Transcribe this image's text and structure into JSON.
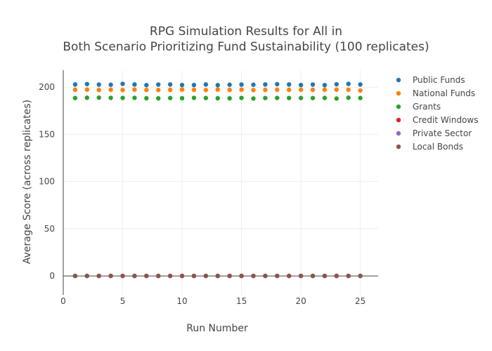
{
  "chart_data": {
    "type": "scatter",
    "title_lines": [
      "RPG Simulation Results for All in",
      "Both Scenario Prioritizing Fund Sustainability (100 replicates)"
    ],
    "xlabel": "Run Number",
    "ylabel": "Average Score (across replicates)",
    "xlim": [
      0,
      26.5
    ],
    "ylim": [
      -20,
      218
    ],
    "xticks": [
      0,
      5,
      10,
      15,
      20,
      25
    ],
    "yticks": [
      0,
      50,
      100,
      150,
      200
    ],
    "grid": true,
    "legend_position": "right",
    "x": [
      1,
      2,
      3,
      4,
      5,
      6,
      7,
      8,
      9,
      10,
      11,
      12,
      13,
      14,
      15,
      16,
      17,
      18,
      19,
      20,
      21,
      22,
      23,
      24,
      25
    ],
    "series": [
      {
        "name": "Public Funds",
        "color": "#1f77b4",
        "values": [
          202.9,
          203.3,
          202.8,
          202.6,
          203.5,
          202.9,
          202.2,
          202.8,
          202.9,
          202.3,
          202.3,
          202.9,
          202.2,
          202.6,
          202.8,
          202.6,
          202.9,
          203.2,
          202.9,
          202.3,
          202.8,
          202.2,
          203.1,
          203.5,
          202.9
        ]
      },
      {
        "name": "National Funds",
        "color": "#ff7f0e",
        "values": [
          197.3,
          197.4,
          197.0,
          197.3,
          197.0,
          197.4,
          197.1,
          197.0,
          197.2,
          197.5,
          197.2,
          197.0,
          197.5,
          197.1,
          197.4,
          196.9,
          197.2,
          197.3,
          197.2,
          197.3,
          197.2,
          197.3,
          197.4,
          197.3,
          196.5
        ]
      },
      {
        "name": "Grants",
        "color": "#2ca02c",
        "values": [
          188.5,
          188.8,
          188.9,
          188.7,
          188.6,
          188.7,
          188.3,
          188.2,
          188.5,
          188.3,
          188.7,
          188.5,
          188.3,
          188.2,
          188.6,
          188.0,
          188.5,
          188.6,
          188.5,
          188.5,
          188.5,
          188.6,
          188.0,
          188.8,
          188.5
        ]
      },
      {
        "name": "Credit Windows",
        "color": "#d62728",
        "values": [
          0.1,
          0.1,
          0.1,
          0.1,
          0.1,
          0.1,
          0.1,
          0.1,
          0.1,
          0.1,
          0.1,
          0.1,
          0.1,
          0.1,
          0.1,
          0.1,
          0.1,
          0.1,
          0.1,
          0.1,
          0.1,
          0.1,
          0.1,
          0.1,
          0.1
        ]
      },
      {
        "name": "Private Sector",
        "color": "#9467bd",
        "values": [
          0.05,
          0.05,
          0.05,
          0.05,
          0.05,
          0.05,
          0.05,
          0.05,
          0.05,
          0.05,
          0.05,
          0.05,
          0.05,
          0.05,
          0.05,
          0.05,
          0.05,
          0.05,
          0.05,
          0.05,
          0.05,
          0.05,
          0.05,
          0.05,
          0.05
        ]
      },
      {
        "name": "Local Bonds",
        "color": "#8c564b",
        "values": [
          0,
          0,
          0,
          0,
          0,
          0,
          0,
          0,
          0,
          0,
          0,
          0,
          0,
          0,
          0,
          0,
          0,
          0,
          0,
          0,
          0,
          0,
          0,
          0,
          0
        ]
      }
    ]
  }
}
